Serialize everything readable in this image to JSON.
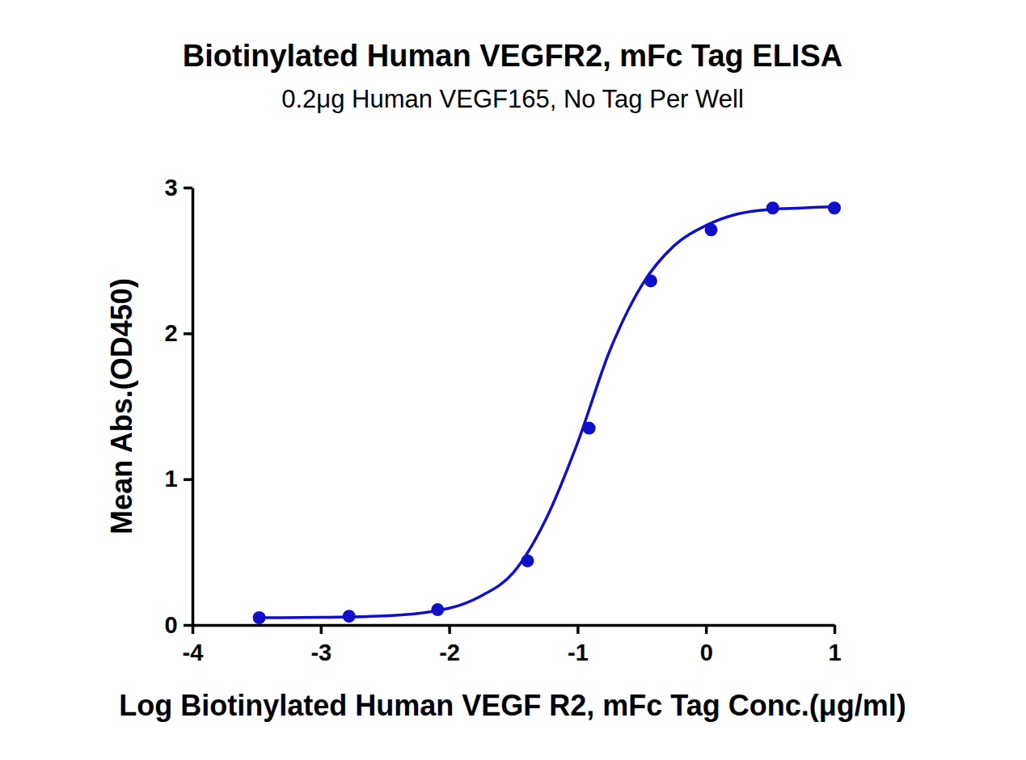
{
  "chart_data": {
    "type": "line",
    "title": "Biotinylated Human VEGFR2, mFc Tag ELISA",
    "subtitle": "0.2μg Human VEGF165, No Tag Per Well",
    "x_label": "Log Biotinylated Human VEGF R2, mFc Tag Conc.(μg/ml)",
    "y_label": "Mean Abs.(OD450)",
    "xlim": [
      -4,
      1
    ],
    "xticks": [
      -4,
      -3,
      -2,
      -1,
      0,
      1
    ],
    "ylim": [
      0,
      3
    ],
    "yticks": [
      0,
      1,
      2,
      3
    ],
    "grid": false,
    "series": [
      {
        "type": "scatter",
        "marker": "circle",
        "color": "#1010c8",
        "x": [
          -3.48,
          -2.78,
          -2.09,
          -1.39,
          -0.91,
          -0.43,
          0.04,
          0.52,
          1.0
        ],
        "values": [
          0.05,
          0.06,
          0.105,
          0.44,
          1.35,
          2.36,
          2.71,
          2.86,
          2.86
        ]
      },
      {
        "type": "line",
        "line_style": "solid",
        "color": "#1010c8",
        "x": [
          -3.5,
          -3.0,
          -2.5,
          -2.0,
          -1.75,
          -1.5,
          -1.25,
          -1.0,
          -0.75,
          -0.5,
          -0.25,
          0.0,
          0.25,
          0.5,
          0.75,
          1.0
        ],
        "values": [
          0.05,
          0.052,
          0.062,
          0.115,
          0.2,
          0.36,
          0.72,
          1.25,
          1.88,
          2.33,
          2.6,
          2.74,
          2.82,
          2.85,
          2.86,
          2.87
        ]
      }
    ]
  }
}
